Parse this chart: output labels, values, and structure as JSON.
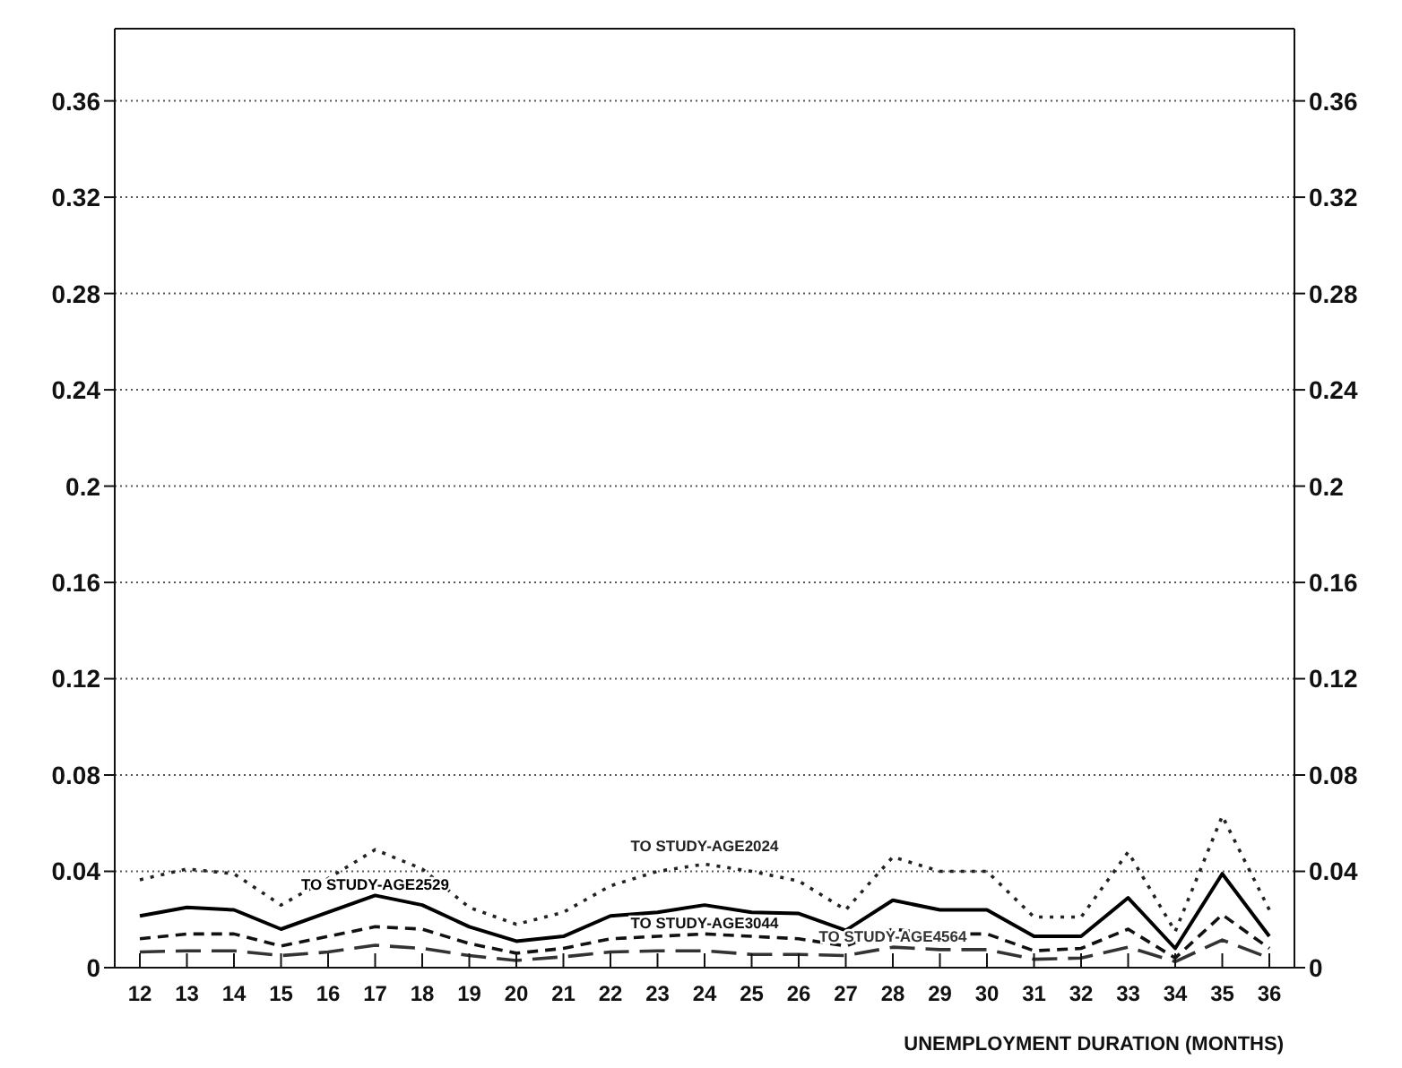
{
  "chart_data": {
    "type": "line",
    "xlabel": "UNEMPLOYMENT DURATION (MONTHS)",
    "categories": [
      "12",
      "13",
      "14",
      "15",
      "16",
      "17",
      "18",
      "19",
      "20",
      "21",
      "22",
      "23",
      "24",
      "25",
      "26",
      "27",
      "28",
      "29",
      "30",
      "31",
      "32",
      "33",
      "34",
      "35",
      "36"
    ],
    "series": [
      {
        "name": "TO STUDY-AGE2024",
        "color": "#222222",
        "line_style": "dotted",
        "values": [
          0.0365,
          0.041,
          0.039,
          0.026,
          0.037,
          0.049,
          0.041,
          0.025,
          0.018,
          0.023,
          0.034,
          0.04,
          0.043,
          0.04,
          0.036,
          0.024,
          0.046,
          0.04,
          0.04,
          0.021,
          0.021,
          0.048,
          0.015,
          0.063,
          0.024
        ]
      },
      {
        "name": "TO STUDY-AGE2529",
        "color": "#000000",
        "line_style": "solid",
        "values": [
          0.0215,
          0.025,
          0.024,
          0.016,
          0.023,
          0.03,
          0.026,
          0.017,
          0.011,
          0.013,
          0.0215,
          0.023,
          0.026,
          0.023,
          0.0225,
          0.0155,
          0.028,
          0.024,
          0.024,
          0.013,
          0.013,
          0.029,
          0.008,
          0.039,
          0.013
        ]
      },
      {
        "name": "TO STUDY-AGE3044",
        "color": "#111111",
        "line_style": "dashed",
        "values": [
          0.012,
          0.014,
          0.014,
          0.009,
          0.013,
          0.017,
          0.016,
          0.01,
          0.006,
          0.008,
          0.012,
          0.013,
          0.014,
          0.013,
          0.012,
          0.009,
          0.016,
          0.014,
          0.014,
          0.007,
          0.008,
          0.016,
          0.004,
          0.022,
          0.008
        ]
      },
      {
        "name": "TO STUDY-AGE4564",
        "color": "#333333",
        "line_style": "dashed",
        "values": [
          0.0065,
          0.007,
          0.007,
          0.005,
          0.0065,
          0.0093,
          0.008,
          0.005,
          0.003,
          0.0045,
          0.0065,
          0.007,
          0.007,
          0.0055,
          0.0055,
          0.005,
          0.0085,
          0.0075,
          0.0075,
          0.0035,
          0.004,
          0.0085,
          0.0025,
          0.0115,
          0.004
        ]
      }
    ],
    "ylim": [
      0,
      0.39
    ],
    "yticks": [
      0,
      0.04,
      0.08,
      0.12,
      0.16,
      0.2,
      0.24,
      0.28,
      0.32,
      0.36
    ],
    "y2lim": [
      0,
      0.39
    ],
    "y2ticks": [
      0,
      0.04,
      0.08,
      0.12,
      0.16,
      0.2,
      0.24,
      0.28,
      0.32,
      0.36
    ],
    "grid": "y",
    "marker": "none",
    "legend": false
  }
}
